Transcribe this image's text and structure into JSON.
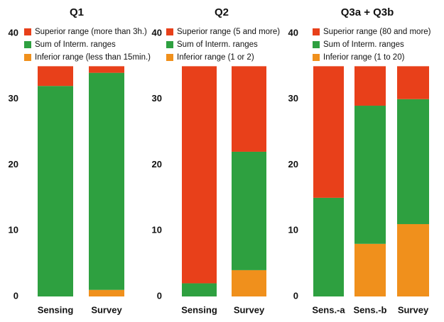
{
  "chart_data": [
    {
      "type": "bar",
      "stacked": true,
      "title": "Q1",
      "categories": [
        "Sensing",
        "Survey"
      ],
      "series": [
        {
          "name": "Inferior range (less than 15min.)",
          "color": "#f0901c",
          "values": [
            0,
            1
          ]
        },
        {
          "name": "Sum of Interm. ranges",
          "color": "#2ea040",
          "values": [
            32,
            33
          ]
        },
        {
          "name": "Superior range (more than 3h.)",
          "color": "#e8401a",
          "values": [
            3,
            1
          ]
        }
      ],
      "ylim": [
        0,
        40
      ],
      "yticks": [
        0,
        10,
        20,
        30,
        40
      ]
    },
    {
      "type": "bar",
      "stacked": true,
      "title": "Q2",
      "categories": [
        "Sensing",
        "Survey"
      ],
      "series": [
        {
          "name": "Inferior range (1 or 2)",
          "color": "#f0901c",
          "values": [
            0,
            4
          ]
        },
        {
          "name": "Sum of Interm. ranges",
          "color": "#2ea040",
          "values": [
            2,
            18
          ]
        },
        {
          "name": "Superior range (5 and more)",
          "color": "#e8401a",
          "values": [
            33,
            13
          ]
        }
      ],
      "ylim": [
        0,
        40
      ],
      "yticks": [
        0,
        10,
        20,
        30,
        40
      ]
    },
    {
      "type": "bar",
      "stacked": true,
      "title": "Q3a + Q3b",
      "categories": [
        "Sens.-a",
        "Sens.-b",
        "Survey"
      ],
      "series": [
        {
          "name": "Inferior range (1 to 20)",
          "color": "#f0901c",
          "values": [
            0,
            8,
            11
          ]
        },
        {
          "name": "Sum of Interm. ranges",
          "color": "#2ea040",
          "values": [
            15,
            21,
            19
          ]
        },
        {
          "name": "Superior range (80 and more)",
          "color": "#e8401a",
          "values": [
            20,
            6,
            5
          ]
        }
      ],
      "ylim": [
        0,
        40
      ],
      "yticks": [
        0,
        10,
        20,
        30,
        40
      ]
    }
  ]
}
